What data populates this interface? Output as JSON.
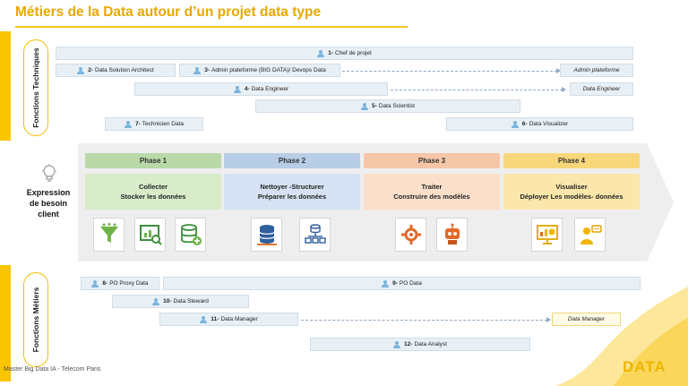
{
  "title": "Métiers de la Data autour d’un projet data type",
  "left_labels": {
    "top": "Fonctions Techniques",
    "bottom": "Fonctions Métiers"
  },
  "expression": [
    "Expression",
    "de besoin",
    "client"
  ],
  "technical_roles": [
    {
      "num": "1-",
      "label": "Chef de projet"
    },
    {
      "num": "2-",
      "label": "Data Solution Architect"
    },
    {
      "num": "3-",
      "label": "Admin plateforme (BIG DATA)/ Devops Data"
    },
    {
      "num": "4-",
      "label": "Data Engineer"
    },
    {
      "num": "5-",
      "label": "Data  Scientist"
    },
    {
      "num": "6-",
      "label": "Data Visualizer"
    },
    {
      "num": "7-",
      "label": "Technicien Data"
    }
  ],
  "technical_extensions": [
    "Admin plateforme",
    "Data Engineer"
  ],
  "phases": [
    {
      "name": "Phase 1",
      "lines": [
        "Collecter",
        "Stocker les données"
      ]
    },
    {
      "name": "Phase 2",
      "lines": [
        "Nettoyer -Structurer",
        "Préparer les données"
      ]
    },
    {
      "name": "Phase 3",
      "lines": [
        "Traiter",
        "Construire des modèles"
      ]
    },
    {
      "name": "Phase 4",
      "lines": [
        "Visualiser",
        "Déployer Les modèles- données"
      ]
    }
  ],
  "business_roles": [
    {
      "num": "8-",
      "label": "PO Proxy Data"
    },
    {
      "num": "9-",
      "label": "PO Data"
    },
    {
      "num": "10-",
      "label": "Data Steward"
    },
    {
      "num": "11-",
      "label": "Data Manager"
    },
    {
      "num": "12-",
      "label": "Data Analyst"
    }
  ],
  "business_extensions": [
    "Data Manager"
  ],
  "footer": "Master Big Data IA - Telecom Paris",
  "logo": "DATA",
  "colors": {
    "accent": "#f9c400",
    "title": "#e8a800",
    "phase1": "#b9d9a8",
    "phase2": "#b8cde6",
    "phase3": "#f6c6a8",
    "phase4": "#f8d77a"
  },
  "icons": [
    "funnel-icon",
    "chart-search-icon",
    "database-add-icon",
    "database-icon",
    "data-structure-icon",
    "gear-processing-icon",
    "robot-icon",
    "dashboard-icon",
    "presenter-icon",
    "lightbulb-icon"
  ]
}
